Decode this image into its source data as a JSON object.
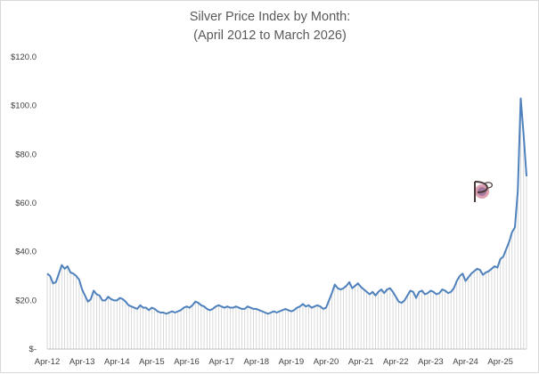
{
  "chart_data": {
    "type": "line",
    "title": "Silver Price Index by Month:",
    "subtitle": "(April 2012 to March 2026)",
    "xlabel": "",
    "ylabel": "",
    "ylim": [
      0,
      120
    ],
    "yticks": [
      0,
      20,
      40,
      60,
      80,
      100,
      120
    ],
    "ytick_labels": [
      "$-",
      "$20.0",
      "$40.0",
      "$60.0",
      "$80.0",
      "$100.0",
      "$120.0"
    ],
    "x_tick_labels": [
      "Apr-12",
      "Apr-13",
      "Apr-14",
      "Apr-15",
      "Apr-16",
      "Apr-17",
      "Apr-18",
      "Apr-19",
      "Apr-20",
      "Apr-21",
      "Apr-22",
      "Apr-23",
      "Apr-24",
      "Apr-25"
    ],
    "x_start": "Apr-12",
    "x_end": "Mar-26",
    "grid": false,
    "legend": "none",
    "line_color": "#4f81bd",
    "drop_line_color": "#d0d0d0",
    "series": [
      {
        "values": [
          31.0,
          30.0,
          27.0,
          27.5,
          31.0,
          34.5,
          33.0,
          34.0,
          31.5,
          31.0,
          30.0,
          28.5,
          24.5,
          22.0,
          19.5,
          20.5,
          24.0,
          22.5,
          22.0,
          20.0,
          20.0,
          21.5,
          20.5,
          20.0,
          20.0,
          21.0,
          20.5,
          19.5,
          18.0,
          17.5,
          17.0,
          16.5,
          18.0,
          17.0,
          17.0,
          16.0,
          17.0,
          16.5,
          15.5,
          15.0,
          15.0,
          14.5,
          15.0,
          15.5,
          15.0,
          15.5,
          16.0,
          17.0,
          17.5,
          17.0,
          18.0,
          19.5,
          19.0,
          18.0,
          17.5,
          16.5,
          16.0,
          16.5,
          17.5,
          18.0,
          17.5,
          17.0,
          17.5,
          17.0,
          17.0,
          17.5,
          17.0,
          16.5,
          16.5,
          17.5,
          17.0,
          16.5,
          16.5,
          16.0,
          15.5,
          15.0,
          14.5,
          15.0,
          15.5,
          15.0,
          15.5,
          16.0,
          16.5,
          16.0,
          15.5,
          16.0,
          17.0,
          17.5,
          18.5,
          17.5,
          18.0,
          17.0,
          17.5,
          18.0,
          17.5,
          16.5,
          17.0,
          20.0,
          23.0,
          26.5,
          25.0,
          24.5,
          25.0,
          26.0,
          27.5,
          25.0,
          26.0,
          27.0,
          25.5,
          24.5,
          23.5,
          22.5,
          23.5,
          22.0,
          23.5,
          24.5,
          23.0,
          24.5,
          25.0,
          23.5,
          21.5,
          19.5,
          19.0,
          20.0,
          22.0,
          24.0,
          23.5,
          21.0,
          23.5,
          24.0,
          22.5,
          23.0,
          24.0,
          23.5,
          22.5,
          23.0,
          24.5,
          24.0,
          23.0,
          23.5,
          25.0,
          28.0,
          30.0,
          31.0,
          28.0,
          29.5,
          31.0,
          32.0,
          33.0,
          32.5,
          30.5,
          31.5,
          32.0,
          33.0,
          34.0,
          33.5,
          37.0,
          38.0,
          41.0,
          44.0,
          48.0,
          50.0,
          65.0,
          103.0,
          88.0,
          71.0
        ]
      }
    ]
  },
  "watermark": {
    "icon": "pd-monogram-logo",
    "text": "PD",
    "colors": [
      "#4a3a3a",
      "#c05070",
      "#8a6a9a"
    ]
  }
}
